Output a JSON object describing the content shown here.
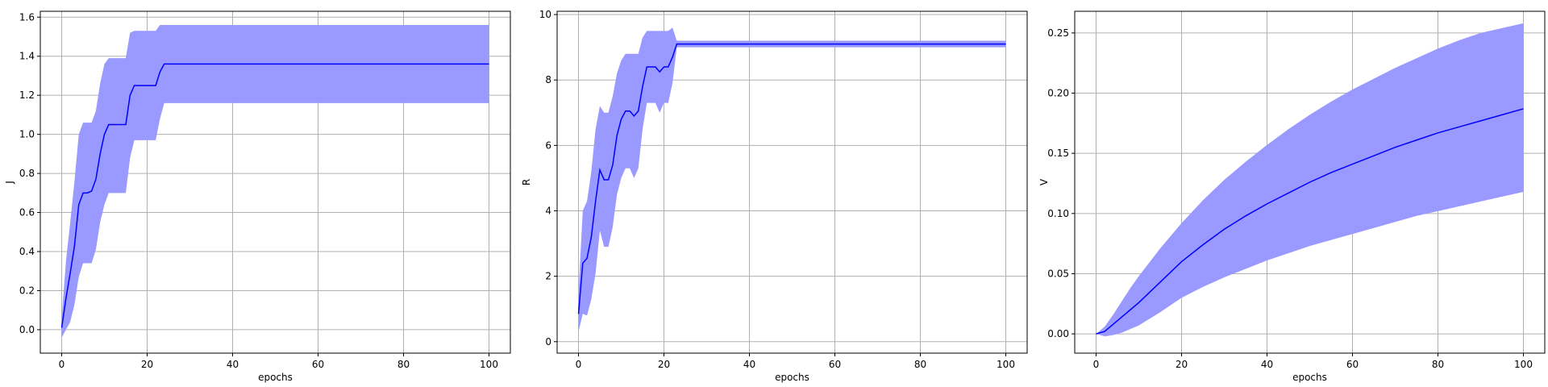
{
  "figure": {
    "xlabel": "epochs"
  },
  "colors": {
    "line": "#0000ff",
    "band": "#9999ff",
    "grid": "#b0b0b0",
    "frame": "#000000"
  },
  "chart_data": [
    {
      "type": "line",
      "title": "",
      "xlabel": "epochs",
      "ylabel": "J",
      "xlim": [
        -5,
        105
      ],
      "ylim": [
        -0.12,
        1.63
      ],
      "xticks": [
        "0",
        "20",
        "40",
        "60",
        "80",
        "100"
      ],
      "yticks": [
        "0.0",
        "0.2",
        "0.4",
        "0.6",
        "0.8",
        "1.0",
        "1.2",
        "1.4",
        "1.6"
      ],
      "grid": true,
      "x": [
        0,
        1,
        2,
        3,
        4,
        5,
        6,
        7,
        8,
        9,
        10,
        11,
        12,
        13,
        14,
        15,
        16,
        17,
        18,
        19,
        20,
        21,
        22,
        23,
        24,
        100
      ],
      "series": [
        {
          "mean": [
            0.01,
            0.16,
            0.29,
            0.43,
            0.64,
            0.7,
            0.7,
            0.71,
            0.77,
            0.9,
            1.0,
            1.05,
            1.05,
            1.05,
            1.05,
            1.05,
            1.2,
            1.25,
            1.25,
            1.25,
            1.25,
            1.25,
            1.25,
            1.32,
            1.36,
            1.36
          ],
          "lower": [
            -0.04,
            0.0,
            0.04,
            0.13,
            0.27,
            0.34,
            0.34,
            0.34,
            0.41,
            0.55,
            0.64,
            0.7,
            0.7,
            0.7,
            0.7,
            0.7,
            0.88,
            0.97,
            0.97,
            0.97,
            0.97,
            0.97,
            0.97,
            1.08,
            1.16,
            1.16
          ],
          "upper": [
            0.06,
            0.35,
            0.55,
            0.76,
            1.0,
            1.06,
            1.06,
            1.06,
            1.12,
            1.26,
            1.36,
            1.39,
            1.39,
            1.39,
            1.39,
            1.39,
            1.52,
            1.53,
            1.53,
            1.53,
            1.53,
            1.53,
            1.53,
            1.56,
            1.56,
            1.56
          ]
        }
      ]
    },
    {
      "type": "line",
      "title": "",
      "xlabel": "epochs",
      "ylabel": "R",
      "xlim": [
        -5,
        105
      ],
      "ylim": [
        -0.35,
        10.1
      ],
      "xticks": [
        "0",
        "20",
        "40",
        "60",
        "80",
        "100"
      ],
      "yticks": [
        "0",
        "2",
        "4",
        "6",
        "8",
        "10"
      ],
      "grid": true,
      "x": [
        0,
        1,
        2,
        3,
        4,
        5,
        6,
        7,
        8,
        9,
        10,
        11,
        12,
        13,
        14,
        15,
        16,
        17,
        18,
        19,
        20,
        21,
        22,
        23,
        24,
        100
      ],
      "series": [
        {
          "mean": [
            0.85,
            2.4,
            2.55,
            3.2,
            4.3,
            5.25,
            4.95,
            4.95,
            5.4,
            6.3,
            6.8,
            7.05,
            7.05,
            6.9,
            7.05,
            7.8,
            8.4,
            8.4,
            8.4,
            8.25,
            8.4,
            8.4,
            8.7,
            9.1,
            9.1,
            9.1
          ],
          "lower": [
            0.3,
            0.85,
            0.8,
            1.3,
            2.1,
            3.4,
            2.9,
            2.9,
            3.5,
            4.5,
            5.0,
            5.3,
            5.3,
            5.0,
            5.3,
            6.5,
            7.3,
            7.3,
            7.3,
            7.0,
            7.3,
            7.3,
            7.9,
            9.0,
            9.0,
            9.0
          ],
          "upper": [
            1.5,
            4.0,
            4.3,
            5.2,
            6.5,
            7.2,
            7.0,
            7.0,
            7.5,
            8.2,
            8.6,
            8.8,
            8.8,
            8.8,
            8.8,
            9.3,
            9.5,
            9.5,
            9.5,
            9.5,
            9.5,
            9.5,
            9.6,
            9.2,
            9.2,
            9.2
          ]
        }
      ]
    },
    {
      "type": "line",
      "title": "",
      "xlabel": "epochs",
      "ylabel": "V",
      "xlim": [
        -5,
        105
      ],
      "ylim": [
        -0.016,
        0.268
      ],
      "xticks": [
        "0",
        "20",
        "40",
        "60",
        "80",
        "100"
      ],
      "yticks": [
        "0.00",
        "0.05",
        "0.10",
        "0.15",
        "0.20",
        "0.25"
      ],
      "grid": true,
      "x": [
        0,
        2,
        4,
        6,
        8,
        10,
        15,
        20,
        25,
        30,
        35,
        40,
        45,
        50,
        55,
        60,
        65,
        70,
        75,
        80,
        85,
        90,
        95,
        100
      ],
      "series": [
        {
          "mean": [
            0.0,
            0.002,
            0.008,
            0.014,
            0.02,
            0.026,
            0.043,
            0.06,
            0.074,
            0.087,
            0.098,
            0.108,
            0.117,
            0.126,
            0.134,
            0.141,
            0.148,
            0.155,
            0.161,
            0.167,
            0.172,
            0.177,
            0.182,
            0.187
          ],
          "lower": [
            0.0,
            -0.002,
            -0.001,
            0.001,
            0.004,
            0.007,
            0.018,
            0.03,
            0.039,
            0.047,
            0.054,
            0.061,
            0.067,
            0.073,
            0.078,
            0.083,
            0.088,
            0.093,
            0.098,
            0.102,
            0.106,
            0.11,
            0.114,
            0.118
          ],
          "upper": [
            0.0,
            0.006,
            0.016,
            0.027,
            0.038,
            0.048,
            0.071,
            0.092,
            0.111,
            0.128,
            0.143,
            0.157,
            0.17,
            0.182,
            0.193,
            0.203,
            0.212,
            0.221,
            0.229,
            0.237,
            0.244,
            0.25,
            0.254,
            0.258
          ]
        }
      ]
    }
  ]
}
